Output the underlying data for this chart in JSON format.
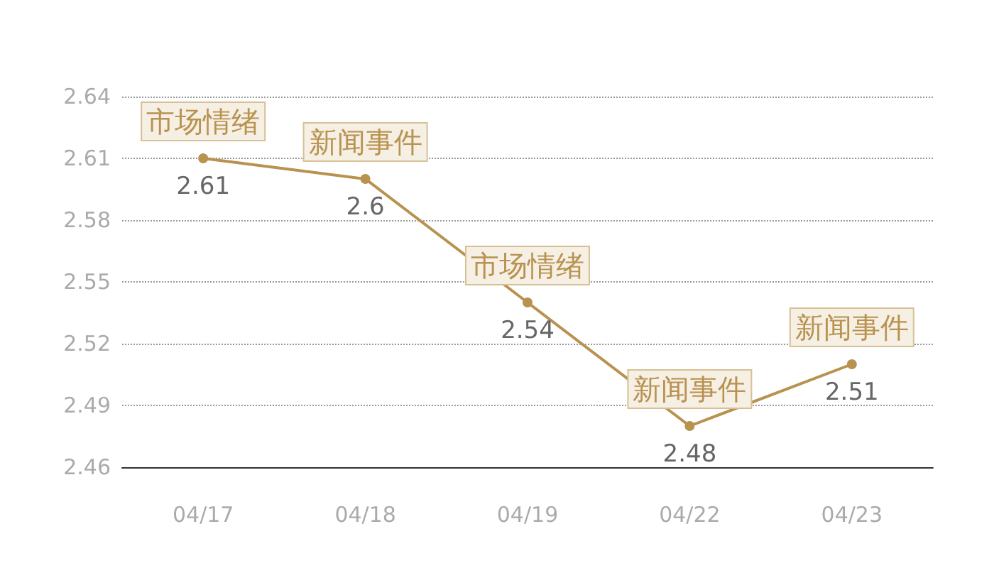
{
  "chart_data": {
    "type": "line",
    "categories": [
      "04/17",
      "04/18",
      "04/19",
      "04/22",
      "04/23"
    ],
    "series": [
      {
        "color": "#b8924f",
        "values": [
          2.61,
          2.6,
          2.54,
          2.48,
          2.51
        ]
      }
    ],
    "ylim": [
      2.46,
      2.64
    ],
    "yticks": [
      2.46,
      2.49,
      2.52,
      2.55,
      2.58,
      2.61,
      2.64
    ],
    "grid": "y",
    "data_labels": true,
    "marker": "circle",
    "line_style": "solid",
    "annotations": [
      {
        "text": "市场情绪",
        "x": "04/17",
        "y": 2.61
      },
      {
        "text": "新闻事件",
        "x": "04/18",
        "y": 2.6
      },
      {
        "text": "市场情绪",
        "x": "04/19",
        "y": 2.54
      },
      {
        "text": "新闻事件",
        "x": "04/22",
        "y": 2.48
      },
      {
        "text": "新闻事件",
        "x": "04/23",
        "y": 2.51
      }
    ]
  }
}
